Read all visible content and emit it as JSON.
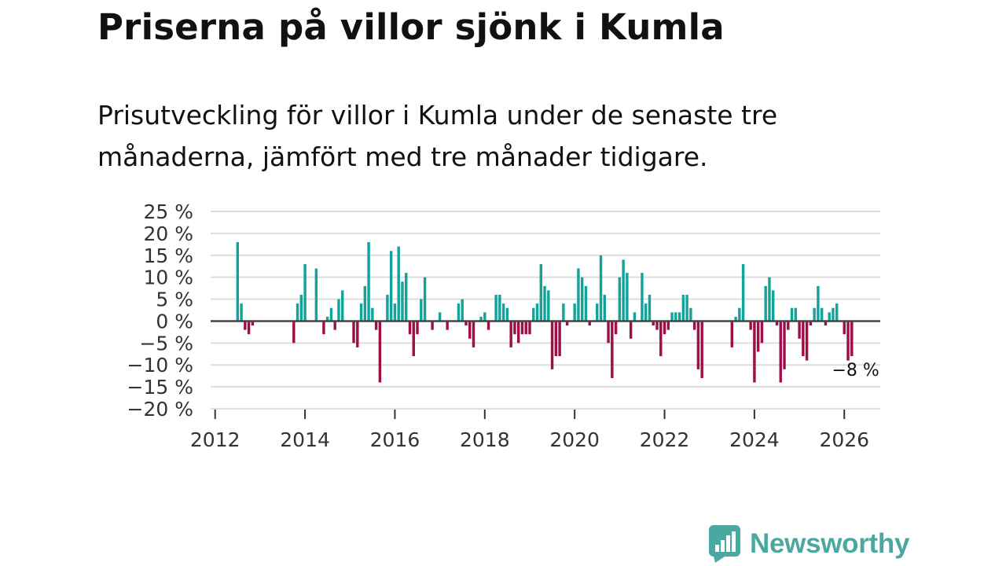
{
  "title": "Priserna på villor sjönk i Kumla",
  "subtitle": "Prisutveckling för villor i Kumla under de senaste tre månaderna, jämfört med tre månader tidigare.",
  "brand": {
    "name": "Newsworthy",
    "icon": "newsworthy-chart-icon",
    "color": "#4aa8a0"
  },
  "colors": {
    "positive": "#14a39a",
    "negative": "#9e0f47",
    "grid": "#dddddd",
    "zero": "#444444",
    "axis": "#333333"
  },
  "chart_data": {
    "type": "bar",
    "title": "Priserna på villor sjönk i Kumla",
    "xlabel": "",
    "ylabel": "",
    "x_start": 2012.5,
    "x_step": 0.0833333,
    "xlim": [
      2011.9,
      2026.8
    ],
    "ylim": [
      -20,
      25
    ],
    "yticks": [
      25,
      20,
      15,
      10,
      5,
      0,
      -5,
      -10,
      -15,
      -20
    ],
    "ytick_labels": [
      "25 %",
      "20 %",
      "15 %",
      "10 %",
      "5 %",
      "0 %",
      "−5 %",
      "−10 %",
      "−15 %",
      "−20 %"
    ],
    "xticks": [
      2012,
      2014,
      2016,
      2018,
      2020,
      2022,
      2024,
      2026
    ],
    "xtick_labels": [
      "2012",
      "2014",
      "2016",
      "2018",
      "2020",
      "2022",
      "2024",
      "2026"
    ],
    "last_label": "−8 %",
    "values": [
      18,
      4,
      -2,
      -3,
      -1,
      0,
      null,
      null,
      null,
      null,
      null,
      null,
      null,
      null,
      null,
      -5,
      4,
      6,
      13,
      0,
      0,
      12,
      0,
      -3,
      1,
      3,
      -2,
      5,
      7,
      0,
      0,
      -5,
      -6,
      4,
      8,
      18,
      3,
      -2,
      -14,
      0,
      6,
      16,
      4,
      17,
      9,
      11,
      -3,
      -8,
      -3,
      5,
      10,
      0,
      -2,
      0,
      2,
      0,
      -2,
      0,
      0,
      4,
      5,
      -1,
      -4,
      -6,
      0,
      1,
      2,
      -2,
      0,
      6,
      6,
      4,
      3,
      -6,
      -3,
      -5,
      -3,
      -3,
      -3,
      3,
      4,
      13,
      8,
      7,
      -11,
      -8,
      -8,
      4,
      -1,
      0,
      4,
      12,
      10,
      8,
      -1,
      0,
      4,
      15,
      6,
      -5,
      -13,
      -3,
      10,
      14,
      11,
      -4,
      2,
      0,
      11,
      4,
      6,
      -1,
      -2,
      -8,
      -3,
      -2,
      2,
      2,
      2,
      6,
      6,
      3,
      -2,
      -11,
      -13,
      null,
      null,
      null,
      null,
      null,
      null,
      null,
      -6,
      1,
      3,
      13,
      0,
      -2,
      -14,
      -7,
      -5,
      8,
      10,
      7,
      -1,
      -14,
      -11,
      -2,
      3,
      3,
      -4,
      -8,
      -9,
      -1,
      3,
      8,
      3,
      -1,
      2,
      3,
      4,
      0,
      -3,
      -9,
      -8
    ]
  }
}
